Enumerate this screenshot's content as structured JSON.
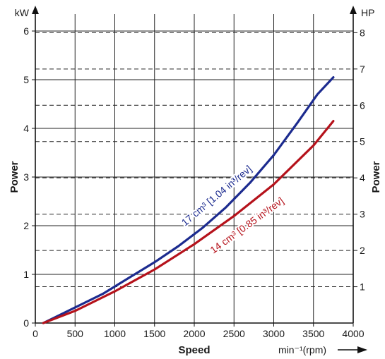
{
  "chart_data": {
    "type": "line",
    "xlabel": "Speed",
    "x_unit_label": "min⁻¹(rpm)",
    "ylabel_left": "Power",
    "ylabel_right": "Power",
    "unit_left": "kW",
    "unit_right": "HP",
    "xlim": [
      0,
      4000
    ],
    "ylim_left": [
      0,
      6
    ],
    "ylim_right_hp": [
      0,
      8.046
    ],
    "x_ticks": [
      0,
      500,
      1000,
      1500,
      2000,
      2500,
      3000,
      3500,
      4000
    ],
    "y_ticks_left": [
      0,
      1,
      2,
      3,
      4,
      5,
      6
    ],
    "y_ticks_right": [
      1,
      2,
      3,
      4,
      5,
      6,
      7,
      8
    ],
    "grid": true,
    "series": [
      {
        "name": "17 cm³ [1.04 in³/rev]",
        "color": "#1c2b8f",
        "x": [
          100,
          500,
          850,
          1200,
          1500,
          1800,
          2100,
          2400,
          2700,
          3000,
          3300,
          3550,
          3750
        ],
        "y": [
          0.0,
          0.32,
          0.6,
          0.95,
          1.25,
          1.58,
          1.95,
          2.38,
          2.88,
          3.45,
          4.12,
          4.7,
          5.05
        ]
      },
      {
        "name": "14 cm³ [0.85 in³/rev]",
        "color": "#b5121b",
        "x": [
          100,
          500,
          1000,
          1500,
          2000,
          2500,
          3000,
          3500,
          3750
        ],
        "y": [
          0.0,
          0.25,
          0.65,
          1.1,
          1.62,
          2.2,
          2.85,
          3.65,
          4.15
        ]
      }
    ]
  }
}
